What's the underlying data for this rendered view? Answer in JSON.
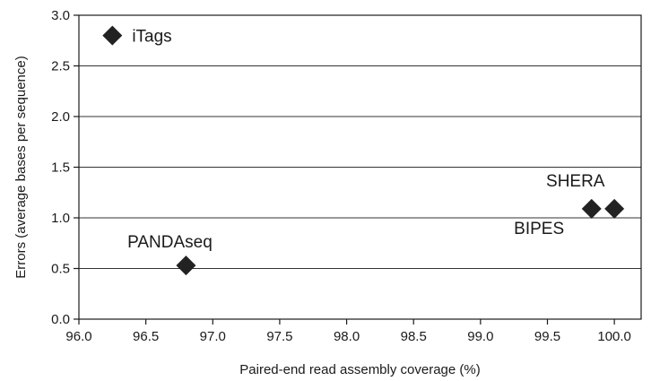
{
  "chart_data": {
    "type": "scatter",
    "title": "",
    "xlabel": "Paired-end read assembly coverage (%)",
    "ylabel": "Errors (average bases per sequence)",
    "xlim": [
      96.0,
      100.2
    ],
    "ylim": [
      0.0,
      3.0
    ],
    "xticks": [
      "96.0",
      "96.5",
      "97.0",
      "97.5",
      "98.0",
      "98.5",
      "99.0",
      "99.5",
      "100.0"
    ],
    "yticks": [
      "0.0",
      "0.5",
      "1.0",
      "1.5",
      "2.0",
      "2.5",
      "3.0"
    ],
    "grid": "horizontal",
    "marker": "diamond",
    "marker_color": "#222222",
    "points": [
      {
        "label": "iTags",
        "x": 96.25,
        "y": 2.8
      },
      {
        "label": "PANDAseq",
        "x": 96.8,
        "y": 0.53
      },
      {
        "label": "SHERA",
        "x": 99.83,
        "y": 1.09
      },
      {
        "label": "BIPES",
        "x": 100.0,
        "y": 1.09
      }
    ]
  }
}
